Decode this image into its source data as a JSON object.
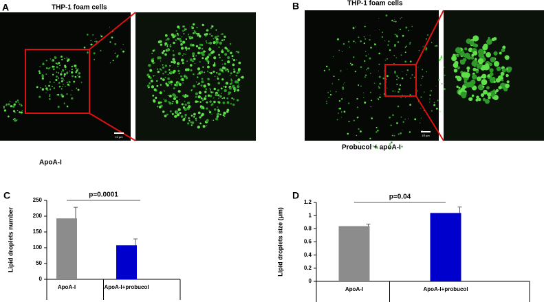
{
  "panels": [
    {
      "label": "A",
      "title": "THP-1 foam cells",
      "caption": "ApoA-I",
      "scale_bar": "10 µm"
    },
    {
      "label": "B",
      "title": "THP-1 foam cells",
      "caption": "Probucol + apoA-I",
      "scale_bar": "10 µm"
    }
  ],
  "chart_data": [
    {
      "type": "bar",
      "label": "C",
      "ylabel": "Lipid droplets number",
      "annotation": "p=0.0001",
      "categories": [
        "ApoA-I",
        "ApoA-I+probucol"
      ],
      "values": [
        193,
        108
      ],
      "errors": [
        35,
        20
      ],
      "colors": [
        "#8c8c8c",
        "#0000cc"
      ],
      "ylim": [
        0,
        250
      ],
      "yticks": [
        0,
        50,
        100,
        150,
        200,
        250
      ]
    },
    {
      "type": "bar",
      "label": "D",
      "ylabel": "Lipid droplets size (µm)",
      "annotation": "p=0.04",
      "categories": [
        "ApoA-I",
        "ApoA-I+probucol"
      ],
      "values": [
        0.84,
        1.04
      ],
      "errors": [
        0.03,
        0.09
      ],
      "colors": [
        "#8c8c8c",
        "#0000cc"
      ],
      "ylim": [
        0,
        1.2
      ],
      "yticks": [
        0,
        0.2,
        0.4,
        0.6,
        0.8,
        1,
        1.2
      ]
    }
  ]
}
